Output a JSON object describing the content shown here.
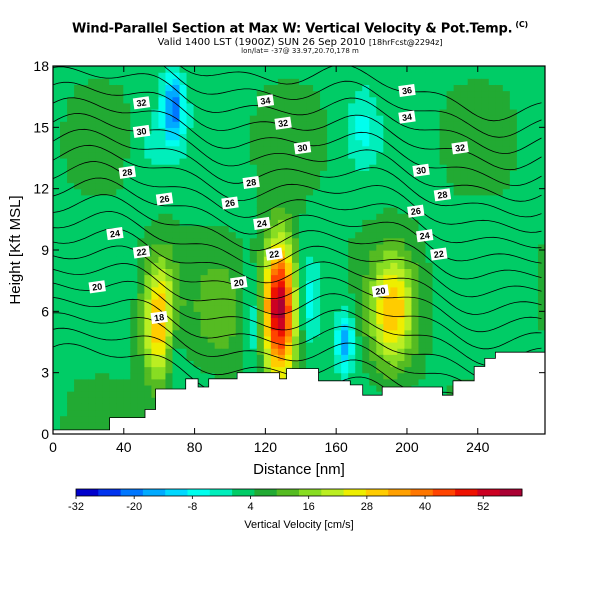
{
  "header": {
    "title": "Wind-Parallel Section at Max W: Vertical Velocity & Pot.Temp.",
    "copyright": "(C)",
    "valid_line": "Valid 1400 LST (1900Z) SUN 26 Sep 2010",
    "forecast_tag": "[18hrFcst@2294z]",
    "location_line": "lon/lat= -37@ 33.97,20.70,178 m"
  },
  "chart_data": {
    "type": "heatmap",
    "title": "Wind-Parallel Section at Max W: Vertical Velocity & Pot.Temp.",
    "xlabel": "Distance [nm]",
    "ylabel": "Height [Kft MSL]",
    "xlim": [
      0,
      278
    ],
    "ylim": [
      0,
      18
    ],
    "x_ticks": [
      0,
      40,
      80,
      120,
      160,
      200,
      240
    ],
    "y_ticks": [
      0,
      3,
      6,
      9,
      12,
      15,
      18
    ],
    "x_tick_labels": [
      "0",
      "40",
      "80",
      "120",
      "160",
      "200",
      "240"
    ],
    "y_tick_labels": [
      "0",
      "3",
      "6",
      "9",
      "12",
      "15",
      "18"
    ],
    "colorbar": {
      "title": "Vertical Velocity [cm/s]",
      "min": -32,
      "max": 60,
      "tick_values": [
        -32,
        -20,
        -8,
        4,
        16,
        28,
        40,
        52
      ],
      "tick_labels": [
        "-32",
        "-20",
        "-8",
        "4",
        "16",
        "28",
        "40",
        "52"
      ],
      "colors": [
        "#0000cc",
        "#0033ee",
        "#0077ff",
        "#00aaff",
        "#00d8ff",
        "#00ffee",
        "#00eebb",
        "#00cc66",
        "#22aa33",
        "#55bb22",
        "#88dd22",
        "#bbee22",
        "#eeee00",
        "#ffcc00",
        "#ffa000",
        "#ff7700",
        "#ff4400",
        "#ee1100",
        "#cc0022",
        "#aa0033"
      ]
    },
    "updrafts": [
      {
        "x": 60,
        "y": 5.5,
        "peak": 28,
        "width": 9,
        "height": 6
      },
      {
        "x": 128,
        "y": 6.2,
        "peak": 55,
        "width": 9,
        "height": 6.5
      },
      {
        "x": 192,
        "y": 6.0,
        "peak": 26,
        "width": 12,
        "height": 5.5
      },
      {
        "x": 95,
        "y": 6.0,
        "peak": 8,
        "width": 14,
        "height": 5
      }
    ],
    "downdrafts": [
      {
        "x": 68,
        "y": 16.0,
        "peak": -24,
        "width": 6,
        "height": 3.5
      },
      {
        "x": 68,
        "y": 4.0,
        "peak": -8,
        "width": 5,
        "height": 3
      },
      {
        "x": 113,
        "y": 5.5,
        "peak": -10,
        "width": 5,
        "height": 4
      },
      {
        "x": 145,
        "y": 6.5,
        "peak": -10,
        "width": 6,
        "height": 4
      },
      {
        "x": 165,
        "y": 4.5,
        "peak": -20,
        "width": 5,
        "height": 3
      },
      {
        "x": 175,
        "y": 15.0,
        "peak": -8,
        "width": 8,
        "height": 4
      },
      {
        "x": 55,
        "y": 14.0,
        "peak": -4,
        "width": 10,
        "height": 5
      }
    ],
    "theta_levels": [
      18,
      19,
      20,
      21,
      22,
      23,
      24,
      25,
      26,
      27,
      28,
      29,
      30,
      31,
      32,
      33,
      34,
      35,
      36,
      37
    ],
    "theta_labels": [
      {
        "text": "36",
        "x": 200,
        "y": 16.8
      },
      {
        "text": "34",
        "x": 120,
        "y": 16.3
      },
      {
        "text": "34",
        "x": 200,
        "y": 15.5
      },
      {
        "text": "32",
        "x": 50,
        "y": 16.2
      },
      {
        "text": "32",
        "x": 130,
        "y": 15.2
      },
      {
        "text": "32",
        "x": 230,
        "y": 14.0
      },
      {
        "text": "30",
        "x": 50,
        "y": 14.8
      },
      {
        "text": "30",
        "x": 141,
        "y": 14.0
      },
      {
        "text": "30",
        "x": 208,
        "y": 12.9
      },
      {
        "text": "28",
        "x": 42,
        "y": 12.8
      },
      {
        "text": "28",
        "x": 112,
        "y": 12.3
      },
      {
        "text": "28",
        "x": 220,
        "y": 11.7
      },
      {
        "text": "26",
        "x": 63,
        "y": 11.5
      },
      {
        "text": "26",
        "x": 100,
        "y": 11.3
      },
      {
        "text": "26",
        "x": 205,
        "y": 10.9
      },
      {
        "text": "24",
        "x": 35,
        "y": 9.8
      },
      {
        "text": "24",
        "x": 118,
        "y": 10.3
      },
      {
        "text": "24",
        "x": 210,
        "y": 9.7
      },
      {
        "text": "22",
        "x": 50,
        "y": 8.9
      },
      {
        "text": "22",
        "x": 125,
        "y": 8.8
      },
      {
        "text": "22",
        "x": 218,
        "y": 8.8
      },
      {
        "text": "20",
        "x": 25,
        "y": 7.2
      },
      {
        "text": "20",
        "x": 105,
        "y": 7.4
      },
      {
        "text": "20",
        "x": 185,
        "y": 7.0
      },
      {
        "text": "18",
        "x": 60,
        "y": 5.7
      }
    ],
    "terrain": [
      [
        0,
        0.2
      ],
      [
        32,
        0.2
      ],
      [
        32,
        0.8
      ],
      [
        52,
        0.8
      ],
      [
        52,
        1.2
      ],
      [
        58,
        1.2
      ],
      [
        58,
        2.2
      ],
      [
        75,
        2.2
      ],
      [
        75,
        2.7
      ],
      [
        82,
        2.7
      ],
      [
        82,
        2.3
      ],
      [
        88,
        2.3
      ],
      [
        88,
        2.7
      ],
      [
        104,
        2.7
      ],
      [
        104,
        3.0
      ],
      [
        128,
        3.0
      ],
      [
        128,
        2.7
      ],
      [
        132,
        2.7
      ],
      [
        132,
        3.2
      ],
      [
        150,
        3.2
      ],
      [
        150,
        2.6
      ],
      [
        168,
        2.6
      ],
      [
        168,
        2.4
      ],
      [
        175,
        2.4
      ],
      [
        175,
        1.9
      ],
      [
        186,
        1.9
      ],
      [
        186,
        2.3
      ],
      [
        220,
        2.3
      ],
      [
        220,
        1.9
      ],
      [
        226,
        1.9
      ],
      [
        226,
        2.6
      ],
      [
        238,
        2.6
      ],
      [
        238,
        3.3
      ],
      [
        244,
        3.3
      ],
      [
        244,
        3.7
      ],
      [
        250,
        3.7
      ],
      [
        250,
        4.0
      ],
      [
        278,
        4.0
      ]
    ]
  }
}
